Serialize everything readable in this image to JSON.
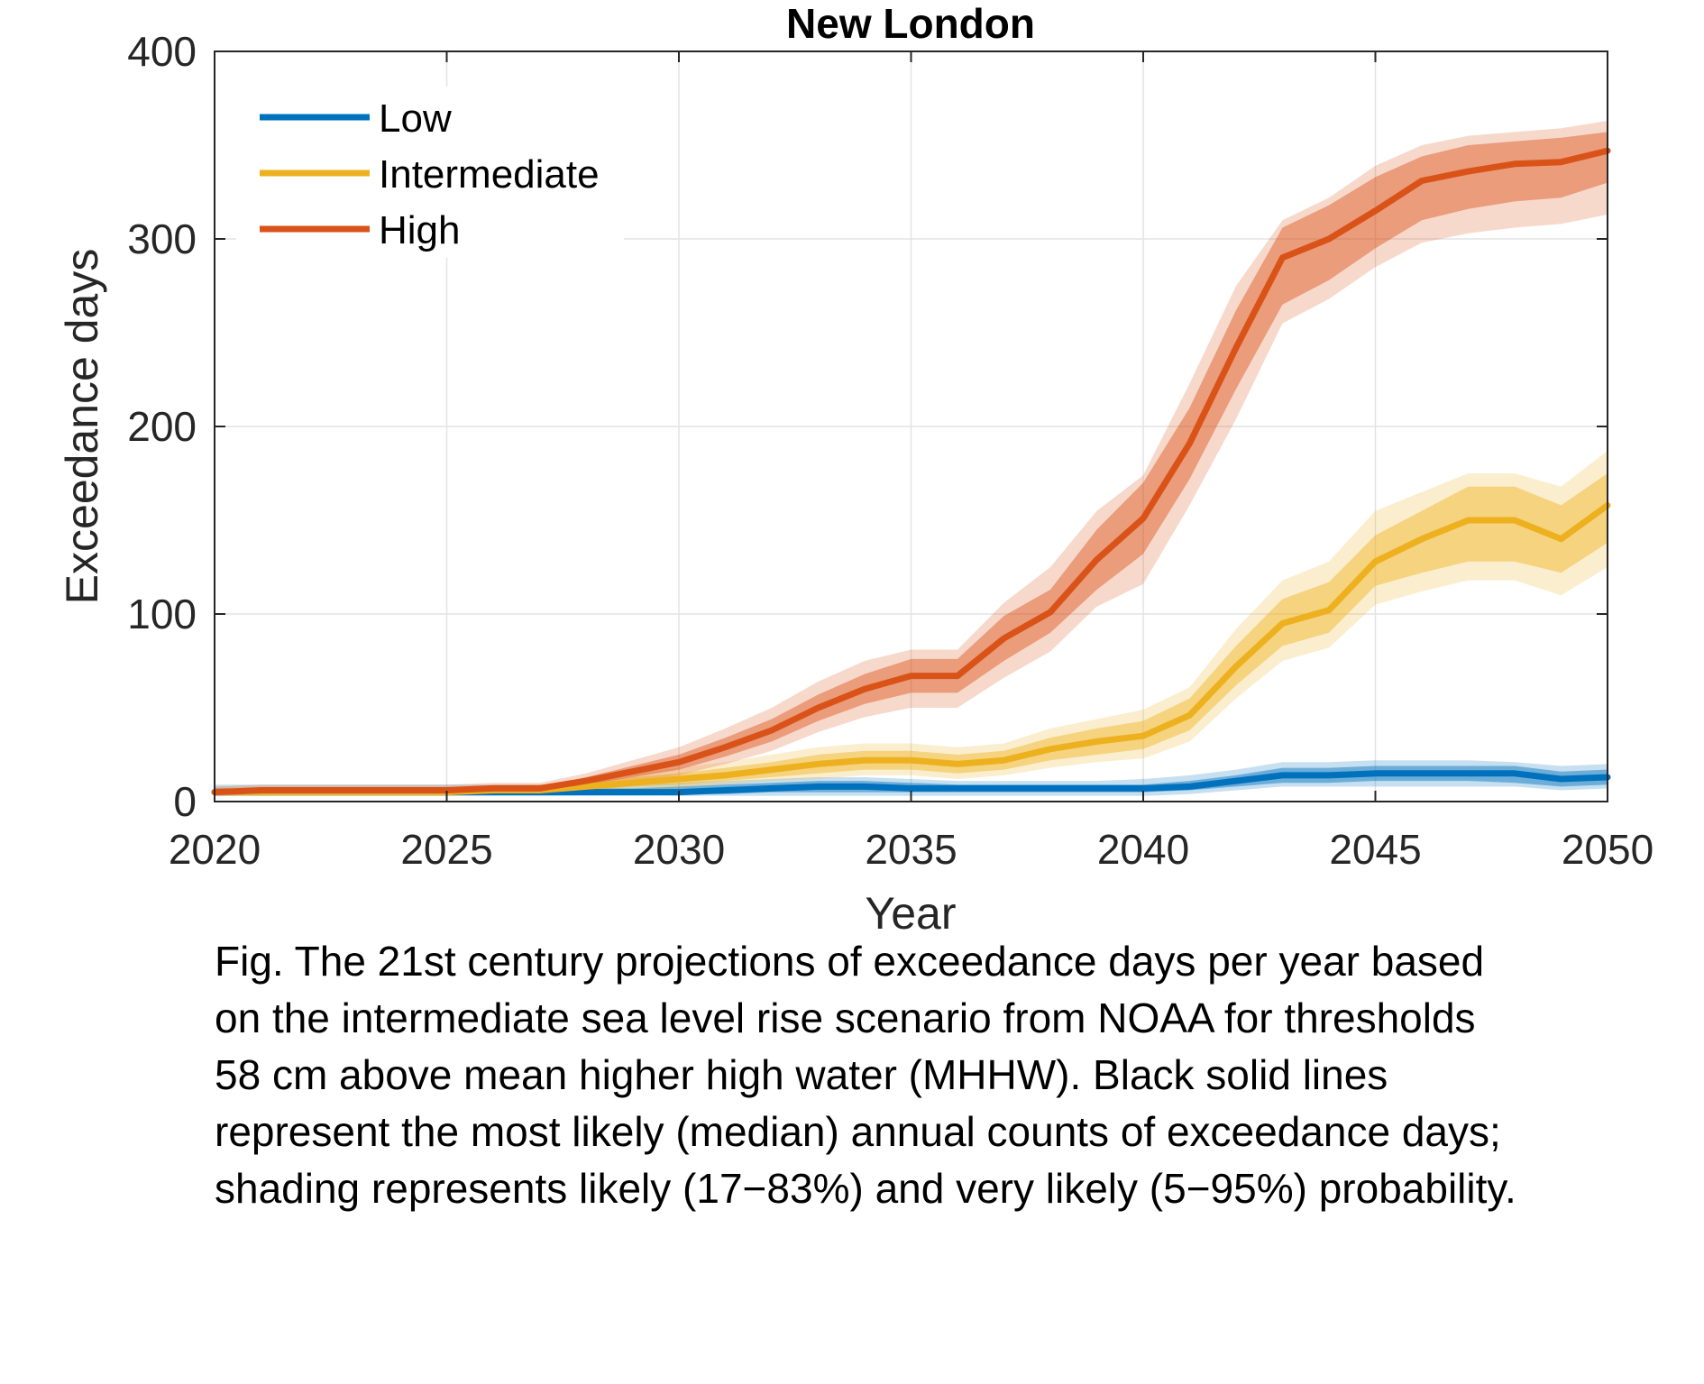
{
  "chart_data": {
    "type": "line",
    "title": "New London",
    "xlabel": "Year",
    "ylabel": "Exceedance days",
    "xlim": [
      2020,
      2050
    ],
    "ylim": [
      0,
      400
    ],
    "xticks": [
      2020,
      2025,
      2030,
      2035,
      2040,
      2045,
      2050
    ],
    "yticks": [
      0,
      100,
      200,
      300,
      400
    ],
    "grid": true,
    "legend_position": "top-left",
    "x": [
      2020,
      2021,
      2022,
      2023,
      2024,
      2025,
      2026,
      2027,
      2028,
      2029,
      2030,
      2031,
      2032,
      2033,
      2034,
      2035,
      2036,
      2037,
      2038,
      2039,
      2040,
      2041,
      2042,
      2043,
      2044,
      2045,
      2046,
      2047,
      2048,
      2049,
      2050
    ],
    "series": [
      {
        "name": "Low",
        "color": "#0072BD",
        "median": [
          5,
          5,
          5,
          5,
          5,
          5,
          5,
          5,
          5,
          5,
          5,
          6,
          7,
          8,
          8,
          7,
          7,
          7,
          7,
          7,
          7,
          8,
          11,
          14,
          14,
          15,
          15,
          15,
          15,
          12,
          13
        ],
        "likely": [
          [
            4,
            4,
            4,
            4,
            4,
            4,
            4,
            4,
            4,
            4,
            4,
            4,
            5,
            5,
            5,
            5,
            5,
            5,
            5,
            5,
            5,
            6,
            8,
            10,
            10,
            11,
            11,
            11,
            10,
            8,
            9
          ],
          [
            7,
            7,
            7,
            7,
            7,
            7,
            7,
            7,
            7,
            7,
            8,
            9,
            10,
            11,
            11,
            10,
            9,
            9,
            9,
            9,
            9,
            11,
            14,
            18,
            18,
            19,
            19,
            19,
            19,
            16,
            17
          ]
        ],
        "very_likely": [
          [
            3,
            3,
            3,
            3,
            3,
            3,
            3,
            3,
            3,
            3,
            3,
            3,
            3,
            3,
            3,
            3,
            3,
            3,
            3,
            3,
            3,
            4,
            6,
            8,
            8,
            8,
            8,
            8,
            8,
            6,
            7
          ],
          [
            9,
            9,
            9,
            9,
            9,
            9,
            9,
            9,
            9,
            9,
            10,
            11,
            12,
            13,
            13,
            12,
            11,
            11,
            11,
            11,
            12,
            14,
            17,
            21,
            21,
            22,
            22,
            22,
            21,
            19,
            20
          ]
        ]
      },
      {
        "name": "Intermediate",
        "color": "#EDB120",
        "median": [
          5,
          5,
          5,
          5,
          5,
          5,
          6,
          6,
          8,
          10,
          12,
          14,
          17,
          20,
          22,
          22,
          20,
          22,
          28,
          32,
          35,
          46,
          72,
          95,
          102,
          128,
          140,
          150,
          150,
          140,
          158
        ],
        "likely": [
          [
            4,
            4,
            4,
            4,
            4,
            4,
            5,
            5,
            6,
            8,
            9,
            11,
            13,
            15,
            17,
            17,
            15,
            17,
            22,
            25,
            28,
            38,
            62,
            83,
            90,
            115,
            122,
            128,
            128,
            122,
            138
          ],
          [
            6,
            6,
            6,
            6,
            6,
            6,
            7,
            7,
            10,
            13,
            15,
            18,
            21,
            25,
            27,
            27,
            25,
            27,
            34,
            39,
            43,
            55,
            83,
            108,
            117,
            142,
            155,
            168,
            168,
            158,
            175
          ]
        ],
        "very_likely": [
          [
            3,
            3,
            3,
            3,
            3,
            3,
            4,
            4,
            5,
            6,
            7,
            9,
            11,
            12,
            14,
            14,
            12,
            14,
            18,
            21,
            23,
            32,
            55,
            75,
            82,
            105,
            112,
            118,
            118,
            110,
            125
          ],
          [
            8,
            8,
            8,
            8,
            8,
            8,
            9,
            9,
            12,
            15,
            18,
            21,
            25,
            29,
            31,
            31,
            29,
            31,
            39,
            44,
            49,
            61,
            92,
            118,
            128,
            155,
            165,
            175,
            175,
            168,
            187
          ]
        ]
      },
      {
        "name": "High",
        "color": "#D95319",
        "median": [
          5,
          6,
          6,
          6,
          6,
          6,
          7,
          7,
          11,
          16,
          21,
          29,
          38,
          50,
          60,
          67,
          67,
          87,
          101,
          129,
          151,
          191,
          242,
          290,
          300,
          315,
          331,
          336,
          340,
          341,
          347
        ],
        "likely": [
          [
            4,
            5,
            5,
            5,
            5,
            5,
            6,
            6,
            9,
            13,
            17,
            24,
            32,
            43,
            52,
            58,
            58,
            75,
            90,
            113,
            132,
            172,
            220,
            265,
            278,
            295,
            310,
            316,
            320,
            322,
            330
          ],
          [
            6,
            7,
            7,
            7,
            7,
            7,
            8,
            8,
            13,
            19,
            25,
            34,
            44,
            57,
            68,
            76,
            76,
            99,
            113,
            145,
            170,
            210,
            262,
            306,
            318,
            333,
            344,
            350,
            352,
            354,
            357
          ]
        ],
        "very_likely": [
          [
            3,
            4,
            4,
            4,
            4,
            4,
            5,
            5,
            7,
            11,
            14,
            20,
            27,
            37,
            45,
            50,
            50,
            66,
            80,
            104,
            116,
            158,
            204,
            255,
            268,
            285,
            298,
            303,
            306,
            308,
            313
          ],
          [
            8,
            9,
            9,
            9,
            9,
            9,
            10,
            10,
            15,
            22,
            29,
            39,
            50,
            64,
            75,
            81,
            81,
            106,
            125,
            155,
            174,
            223,
            275,
            310,
            322,
            339,
            350,
            355,
            357,
            359,
            363
          ]
        ]
      }
    ]
  },
  "caption": [
    "Fig. The 21st century projections of exceedance days per year based",
    "on the intermediate sea level rise scenario from NOAA for thresholds",
    "58 cm above mean higher high water (MHHW). Black solid lines",
    "represent the most likely (median) annual counts of exceedance days;",
    "shading represents likely (17−83%) and very likely (5−95%) probability."
  ]
}
